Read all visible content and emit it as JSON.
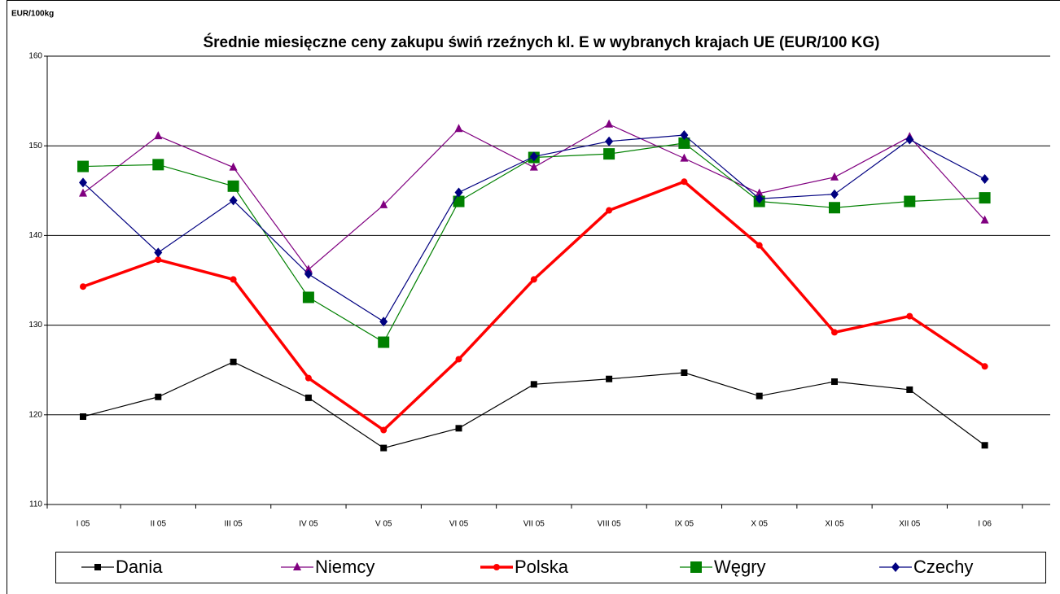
{
  "chart_data": {
    "type": "line",
    "title": "Średnie miesięczne ceny zakupu świń rzeźnych kl. E w wybranych krajach UE (EUR/100 KG)",
    "y_label": "EUR/100kg",
    "categories": [
      "I 05",
      "II 05",
      "III 05",
      "IV 05",
      "V 05",
      "VI 05",
      "VII 05",
      "VIII 05",
      "IX 05",
      "X 05",
      "XI 05",
      "XII 05",
      "I 06"
    ],
    "ylim": [
      110,
      160
    ],
    "yticks": [
      110,
      120,
      130,
      140,
      150,
      160
    ],
    "grid": true,
    "legend": "bottom",
    "series": [
      {
        "name": "Dania",
        "color": "#000000",
        "marker": "square",
        "values": [
          119.8,
          122.0,
          125.9,
          121.9,
          116.3,
          118.5,
          123.4,
          124.0,
          124.7,
          122.1,
          123.7,
          122.8,
          116.6
        ]
      },
      {
        "name": "Niemcy",
        "color": "#800080",
        "marker": "triangle",
        "values": [
          144.7,
          151.1,
          147.6,
          136.2,
          143.4,
          151.9,
          147.6,
          152.4,
          148.6,
          144.7,
          146.5,
          151.0,
          141.7
        ]
      },
      {
        "name": "Polska",
        "color": "#ff0000",
        "marker": "circle",
        "values": [
          134.3,
          137.3,
          135.1,
          124.1,
          118.3,
          126.2,
          135.1,
          142.8,
          146.0,
          138.9,
          129.2,
          131.0,
          125.4
        ]
      },
      {
        "name": "Węgry",
        "color": "#008000",
        "marker": "bigsquare",
        "values": [
          147.7,
          147.9,
          145.5,
          133.1,
          128.1,
          143.8,
          148.7,
          149.1,
          150.3,
          143.8,
          143.1,
          143.8,
          144.2
        ]
      },
      {
        "name": "Czechy",
        "color": "#000080",
        "marker": "diamond",
        "values": [
          145.9,
          138.1,
          143.9,
          135.7,
          130.4,
          144.8,
          148.8,
          150.5,
          151.2,
          144.1,
          144.6,
          150.7,
          146.3
        ]
      }
    ]
  }
}
